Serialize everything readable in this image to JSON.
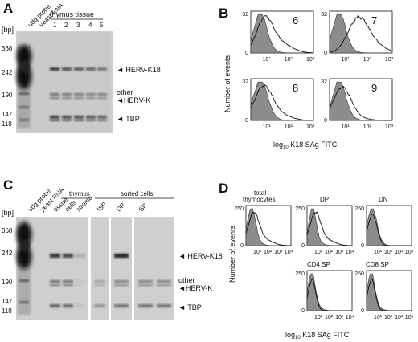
{
  "panels": {
    "A": {
      "label": "A",
      "bp_header": "[bp]",
      "markers": [
        "368",
        "242",
        "190",
        "147",
        "118"
      ],
      "lane_labels": [
        "udg probe",
        "yeast RNA"
      ],
      "group_label": "thymus tissue",
      "lane_numbers": [
        "1",
        "2",
        "3",
        "4",
        "5"
      ],
      "band_labels": [
        "HERV-K18",
        "other",
        "HERV-K",
        "TBP"
      ],
      "band_intensity": {
        "herv_k18": [
          0.85,
          0.7,
          0.65,
          0.6,
          0.5
        ],
        "other": [
          0.55,
          0.5,
          0.5,
          0.45,
          0.45
        ],
        "tbp": [
          0.8,
          0.7,
          0.7,
          0.65,
          0.6
        ]
      }
    },
    "B": {
      "label": "B",
      "y_label": "Number of events",
      "x_label_prefix": "log",
      "x_label_sub": "10",
      "x_label_suffix": " K18 SAg FITC",
      "y_ticks": [
        "32",
        "0"
      ],
      "x_ticks": [
        "10¹",
        "10²",
        "10³"
      ],
      "samples": [
        "6",
        "7",
        "8",
        "9"
      ]
    },
    "C": {
      "label": "C",
      "bp_header": "[bp]",
      "markers": [
        "368",
        "242",
        "190",
        "147",
        "118"
      ],
      "lane_labels": [
        "udg probe",
        "yeast RNA",
        "tissue",
        "cells",
        "stroma",
        "ISP",
        "DP",
        "SP"
      ],
      "group_thymus": "thymus",
      "group_sorted": "sorted cells",
      "band_labels": [
        "HERV-K18",
        "other",
        "HERV-K",
        "TBP"
      ]
    },
    "D": {
      "label": "D",
      "y_label": "Number of events",
      "x_label_prefix": "log",
      "x_label_sub": "10",
      "x_label_suffix": " K18 SAg FITC",
      "y_ticks": [
        "250",
        "0"
      ],
      "x_ticks": [
        "10¹",
        "10²",
        "10³",
        "10⁴"
      ],
      "populations": [
        "total thymocytes",
        "DP",
        "DN",
        "CD4 SP",
        "CD8 SP"
      ],
      "total_line1": "total",
      "total_line2": "thymocytes"
    }
  }
}
